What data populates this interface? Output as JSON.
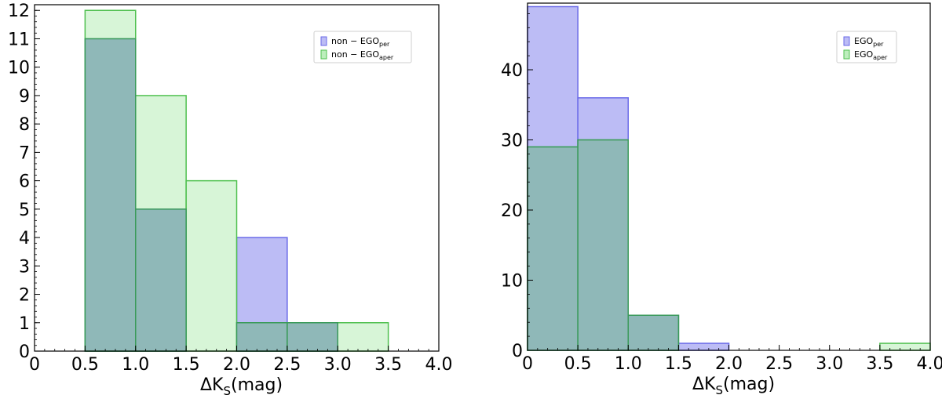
{
  "chart_data": [
    {
      "type": "bar",
      "bin_edges": [
        0.5,
        1.0,
        1.5,
        2.0,
        2.5,
        3.0,
        3.5
      ],
      "xlim": [
        0,
        4.0
      ],
      "ylim": [
        0,
        12.2
      ],
      "xticks": [
        "0",
        "0.5",
        "1.0",
        "1.5",
        "2.0",
        "2.5",
        "3.0",
        "3.5",
        "4.0"
      ],
      "yticks": [
        "0",
        "1",
        "2",
        "3",
        "4",
        "5",
        "6",
        "7",
        "8",
        "9",
        "10",
        "11",
        "12"
      ],
      "xlabel": {
        "main": "ΔK",
        "sub": "S",
        "unit": "(mag)"
      },
      "legend_position": "upper-right",
      "series": [
        {
          "legend_main": "non − EGO",
          "legend_sub": "per",
          "color": "#6a6ae8",
          "fill": "#bcbcf5",
          "values": [
            11,
            5,
            0,
            4,
            1,
            0
          ]
        },
        {
          "legend_main": "non − EGO",
          "legend_sub": "aper",
          "color": "#4fc04f",
          "fill": "#bdeebd",
          "values": [
            12,
            9,
            6,
            1,
            1,
            1
          ]
        }
      ]
    },
    {
      "type": "bar",
      "bin_edges": [
        0.0,
        0.5,
        1.0,
        1.5,
        2.0,
        2.5,
        3.0,
        3.5,
        4.0
      ],
      "xlim": [
        0,
        4.0
      ],
      "ylim": [
        0,
        49.5
      ],
      "xticks": [
        "0",
        "0.5",
        "1.0",
        "1.5",
        "2.0",
        "2.5",
        "3.0",
        "3.5",
        "4.0"
      ],
      "yticks": [
        "0",
        "10",
        "20",
        "30",
        "40"
      ],
      "xlabel": {
        "main": "ΔK",
        "sub": "S",
        "unit": "(mag)"
      },
      "legend_position": "upper-right",
      "series": [
        {
          "legend_main": "EGO",
          "legend_sub": "per",
          "color": "#6a6ae8",
          "fill": "#bcbcf5",
          "values": [
            49,
            36,
            5,
            1,
            0,
            0,
            0,
            0
          ]
        },
        {
          "legend_main": "EGO",
          "legend_sub": "aper",
          "color": "#4fc04f",
          "fill": "#bdeebd",
          "values": [
            29,
            30,
            5,
            0,
            0,
            0,
            0,
            1
          ]
        }
      ]
    }
  ]
}
